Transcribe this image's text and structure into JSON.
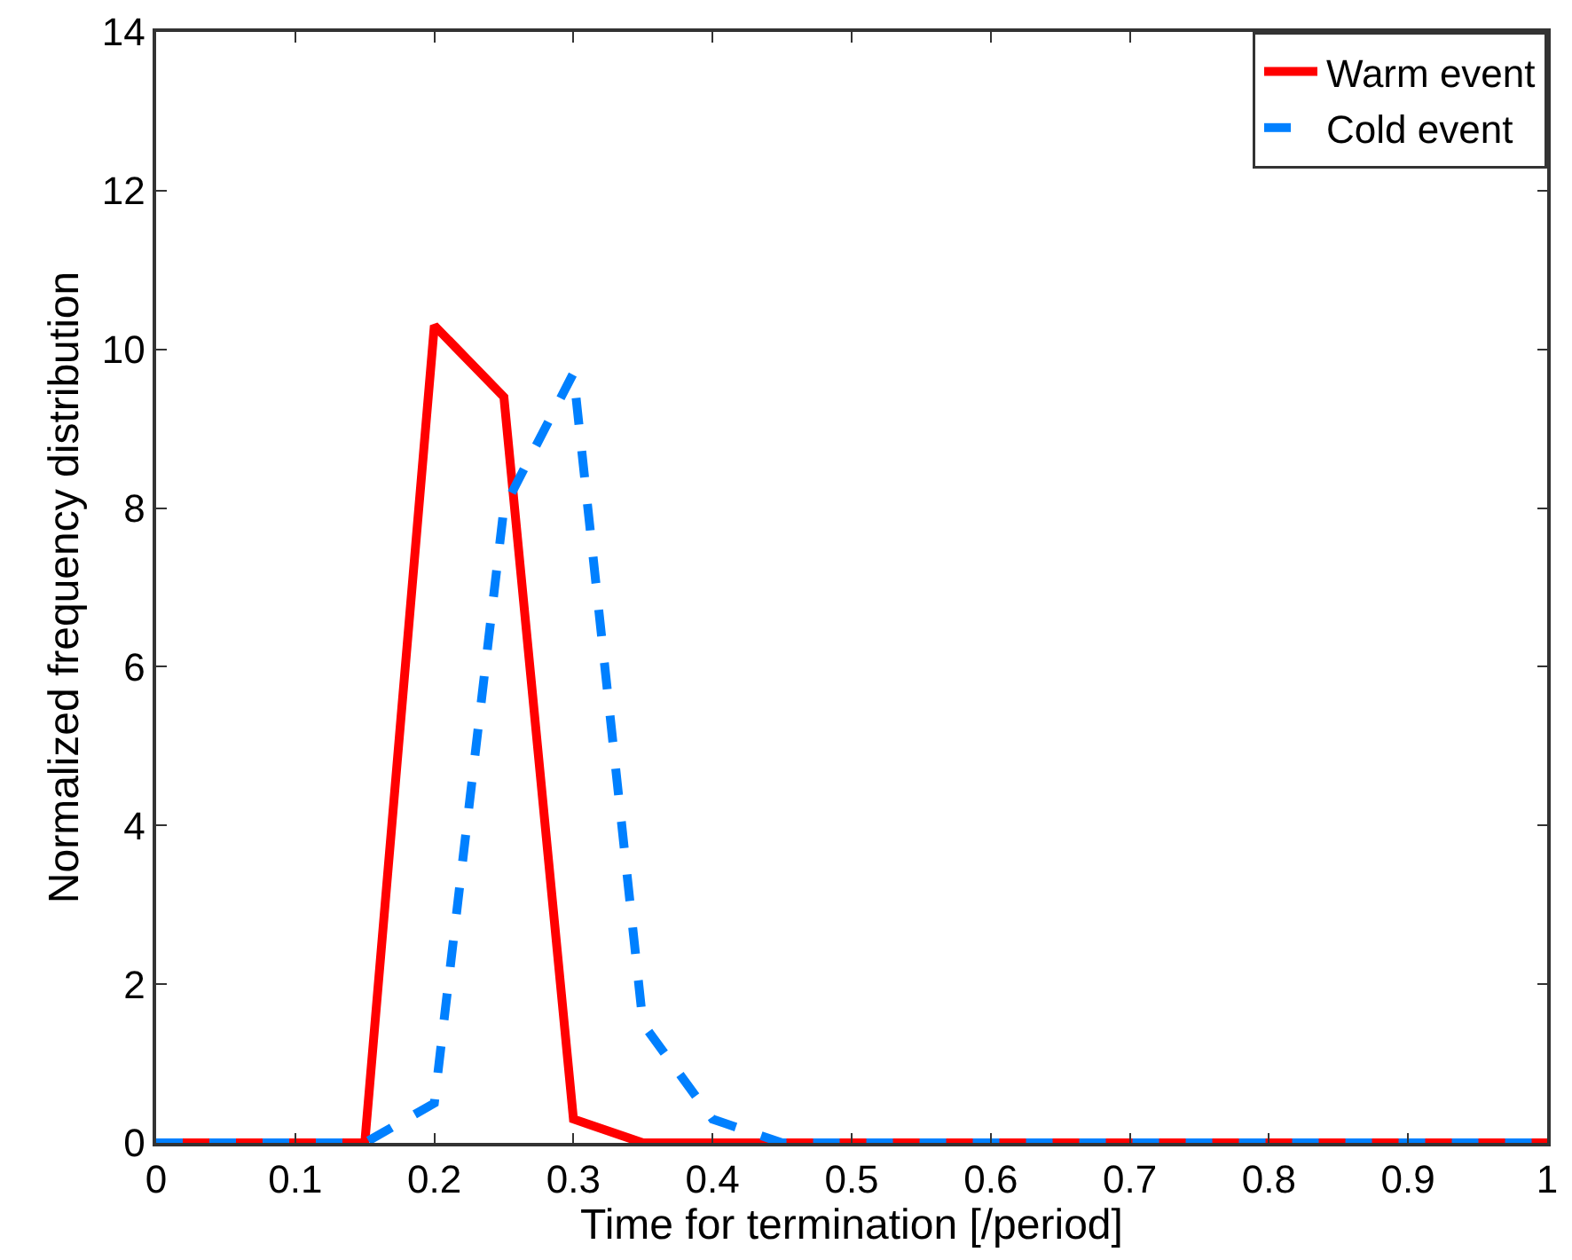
{
  "chart_data": {
    "type": "line",
    "xlabel": "Time for termination [/period]",
    "ylabel": "Normalized frequency distribution",
    "x": [
      0,
      0.05,
      0.1,
      0.15,
      0.2,
      0.25,
      0.3,
      0.35,
      0.4,
      0.45,
      0.5,
      0.55,
      0.6,
      0.65,
      0.7,
      0.75,
      0.8,
      0.85,
      0.9,
      0.95,
      1
    ],
    "series": [
      {
        "name": "Warm event",
        "color": "#ff0000",
        "line_style": "solid",
        "values": [
          0,
          0,
          0,
          0,
          10.3,
          9.4,
          0.3,
          0,
          0,
          0,
          0,
          0,
          0,
          0,
          0,
          0,
          0,
          0,
          0,
          0,
          0
        ]
      },
      {
        "name": "Cold event",
        "color": "#0080ff",
        "line_style": "dashed",
        "values": [
          0,
          0,
          0,
          0,
          0.5,
          8.0,
          9.7,
          1.5,
          0.3,
          0,
          0,
          0,
          0,
          0,
          0,
          0,
          0,
          0,
          0,
          0,
          0
        ]
      }
    ],
    "xlim": [
      0,
      1
    ],
    "xticks": [
      0,
      0.1,
      0.2,
      0.3,
      0.4,
      0.5,
      0.6,
      0.7,
      0.8,
      0.9,
      1
    ],
    "ylim": [
      0,
      14
    ],
    "yticks": [
      0,
      2,
      4,
      6,
      8,
      10,
      12,
      14
    ],
    "grid": false,
    "legend": "top right"
  }
}
